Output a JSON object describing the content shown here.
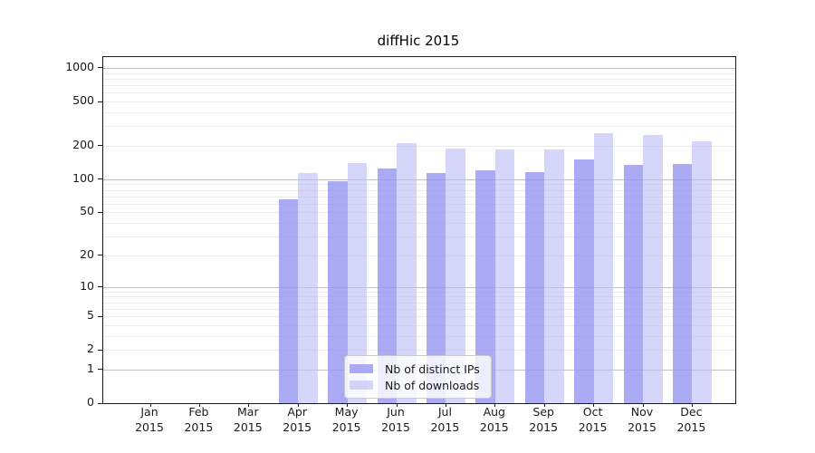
{
  "chart_data": {
    "type": "bar",
    "title": "diffHic 2015",
    "x": {
      "categories": [
        "Jan",
        "Feb",
        "Mar",
        "Apr",
        "May",
        "Jun",
        "Jul",
        "Aug",
        "Sep",
        "Oct",
        "Nov",
        "Dec"
      ],
      "sublabel": "2015"
    },
    "series": [
      {
        "name": "Nb of distinct IPs",
        "color": "#9696f3",
        "alpha": 0.8,
        "values": [
          0,
          0,
          0,
          66,
          96,
          126,
          113,
          121,
          116,
          150,
          135,
          136
        ]
      },
      {
        "name": "Nb of downloads",
        "color": "#bbbbf6",
        "alpha": 0.6,
        "values": [
          0,
          0,
          0,
          114,
          140,
          210,
          190,
          184,
          186,
          258,
          250,
          219
        ]
      }
    ],
    "y_axis": {
      "scale": "log10(value+1)",
      "ticks": [
        0,
        1,
        2,
        5,
        10,
        20,
        50,
        100,
        200,
        500,
        1000
      ],
      "major_grid": [
        1,
        10,
        100,
        1000
      ],
      "minor_grid": [
        2,
        3,
        4,
        5,
        6,
        7,
        8,
        9,
        20,
        30,
        40,
        50,
        60,
        70,
        80,
        90,
        200,
        300,
        400,
        500,
        600,
        700,
        800,
        900
      ],
      "ylim": [
        0,
        1250
      ]
    },
    "legend": {
      "position": "bottom-center",
      "entries": [
        "Nb of distinct IPs",
        "Nb of downloads"
      ]
    },
    "grid": true
  },
  "colors": {
    "minor_grid": "#ececec",
    "major_grid": "#c2c2c2",
    "spine": "#1a1a1a",
    "text": "#1a1a1a",
    "background": "#ffffff"
  }
}
